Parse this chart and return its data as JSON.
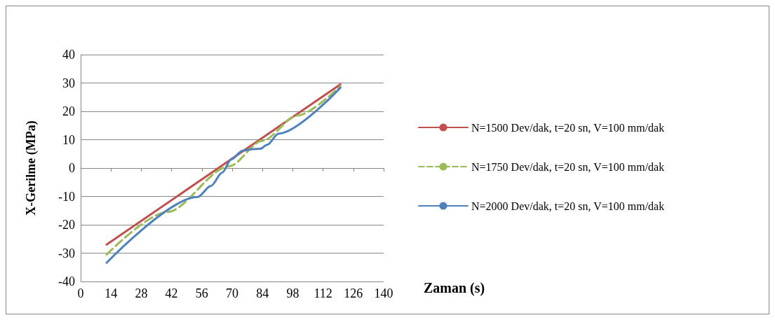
{
  "chart_data": {
    "type": "line",
    "xlabel": "Zaman (s)",
    "ylabel": "X-Gerilme (MPa)",
    "xlim": [
      0,
      140
    ],
    "xticks": [
      0,
      14,
      28,
      42,
      56,
      70,
      84,
      98,
      112,
      126,
      140
    ],
    "ylim": [
      -40,
      40
    ],
    "yticks": [
      -40,
      -30,
      -20,
      -10,
      0,
      10,
      20,
      30,
      40
    ],
    "grid": "y",
    "legend": "right",
    "marker": "none",
    "series": [
      {
        "name": "N=1500 Dev/dak, t=20 sn, V=100 mm/dak",
        "color": "#c0504d",
        "line_style": "solid",
        "x": [
          12,
          120
        ],
        "values": [
          -27,
          29.5
        ]
      },
      {
        "name": "N=1750 Dev/dak, t=20 sn, V=100 mm/dak",
        "color": "#9bbb59",
        "line_style": "dashed",
        "x": [
          12,
          40,
          68.5,
          84,
          100,
          120
        ],
        "values": [
          -30.5,
          -15.5,
          0.6,
          9.6,
          18.5,
          28.9
        ]
      },
      {
        "name": "N=2000 Dev/dak, t=20 sn, V=100 mm/dak",
        "color": "#4f81bd",
        "line_style": "solid",
        "x": [
          12,
          54,
          60.2,
          65.4,
          69.6,
          74.8,
          78.9,
          83,
          86.2,
          91.4,
          120
        ],
        "values": [
          -33.4,
          -10.2,
          -6.3,
          -1.6,
          3.1,
          6.1,
          6.6,
          6.8,
          8.2,
          12.1,
          28.3
        ]
      }
    ]
  }
}
